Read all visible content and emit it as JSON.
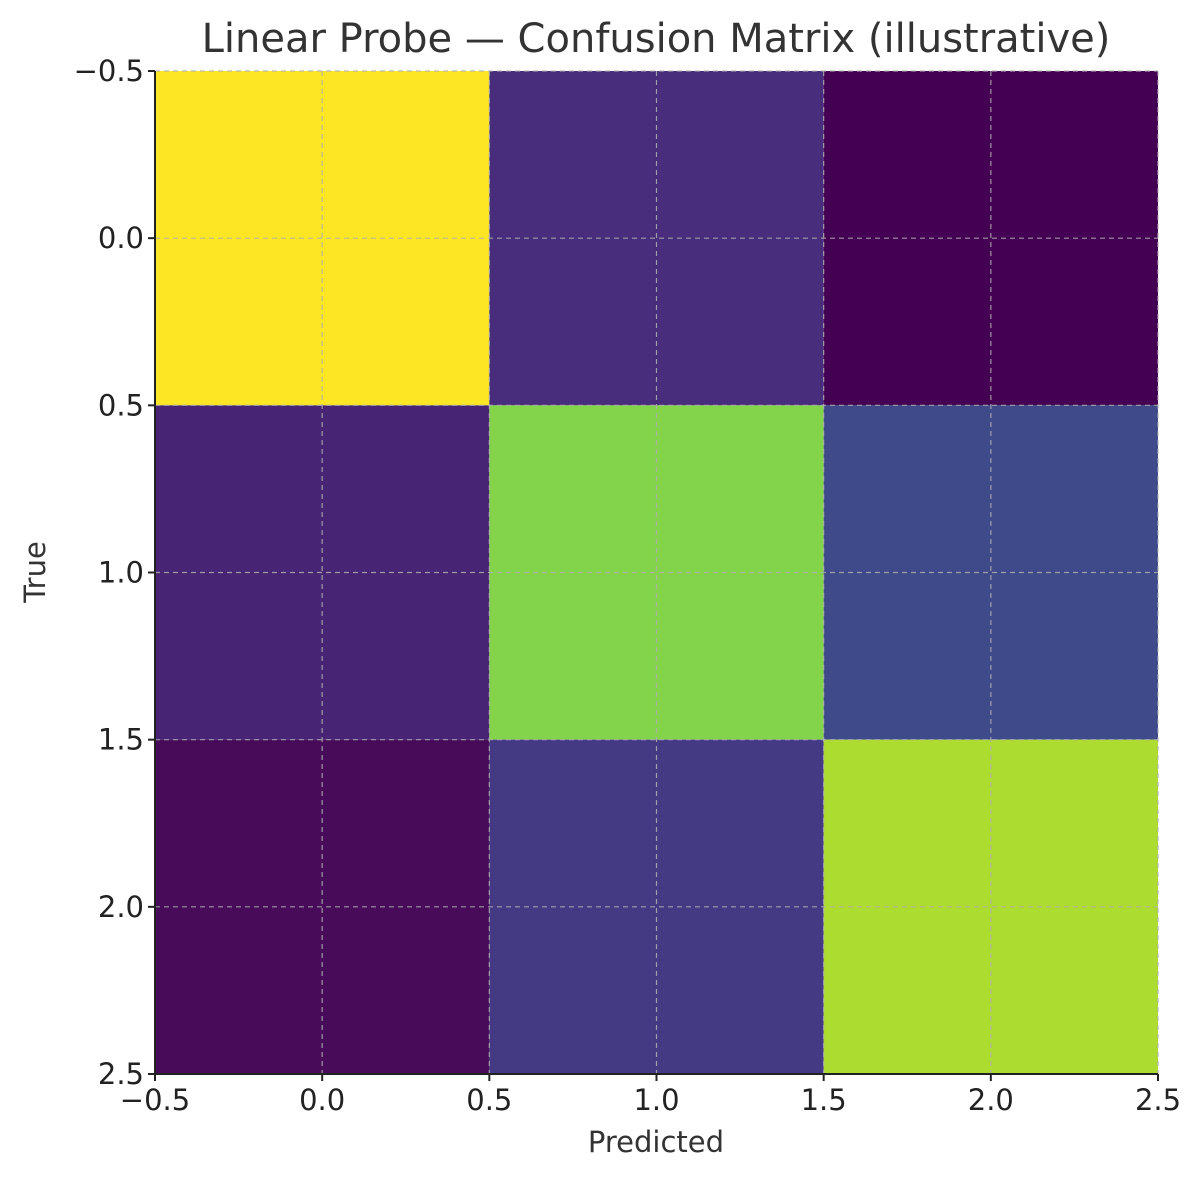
{
  "chart_data": {
    "type": "heatmap",
    "title": "Linear Probe — Confusion Matrix (illustrative)",
    "xlabel": "Predicted",
    "ylabel": "True",
    "xlim": [
      -0.5,
      2.5
    ],
    "ylim": [
      2.5,
      -0.5
    ],
    "y_inverted": true,
    "grid": true,
    "colormap": "viridis",
    "x_ticks": [
      -0.5,
      0.0,
      0.5,
      1.0,
      1.5,
      2.0,
      2.5
    ],
    "y_ticks": [
      -0.5,
      0.0,
      0.5,
      1.0,
      1.5,
      2.0,
      2.5
    ],
    "x_tick_labels": [
      "−0.5",
      "0.0",
      "0.5",
      "1.0",
      "1.5",
      "2.0",
      "2.5"
    ],
    "y_tick_labels": [
      "−0.5",
      "0.0",
      "0.5",
      "1.0",
      "1.5",
      "2.0",
      "2.5"
    ],
    "matrix": [
      [
        1.0,
        0.08,
        0.0
      ],
      [
        0.07,
        0.77,
        0.22
      ],
      [
        0.02,
        0.1,
        0.85
      ]
    ],
    "cell_colors": [
      [
        "#fde725",
        "#472d7b",
        "#440154"
      ],
      [
        "#482475",
        "#84d44b",
        "#3e4a89"
      ],
      [
        "#470b5a",
        "#443983",
        "#addc30"
      ]
    ]
  }
}
